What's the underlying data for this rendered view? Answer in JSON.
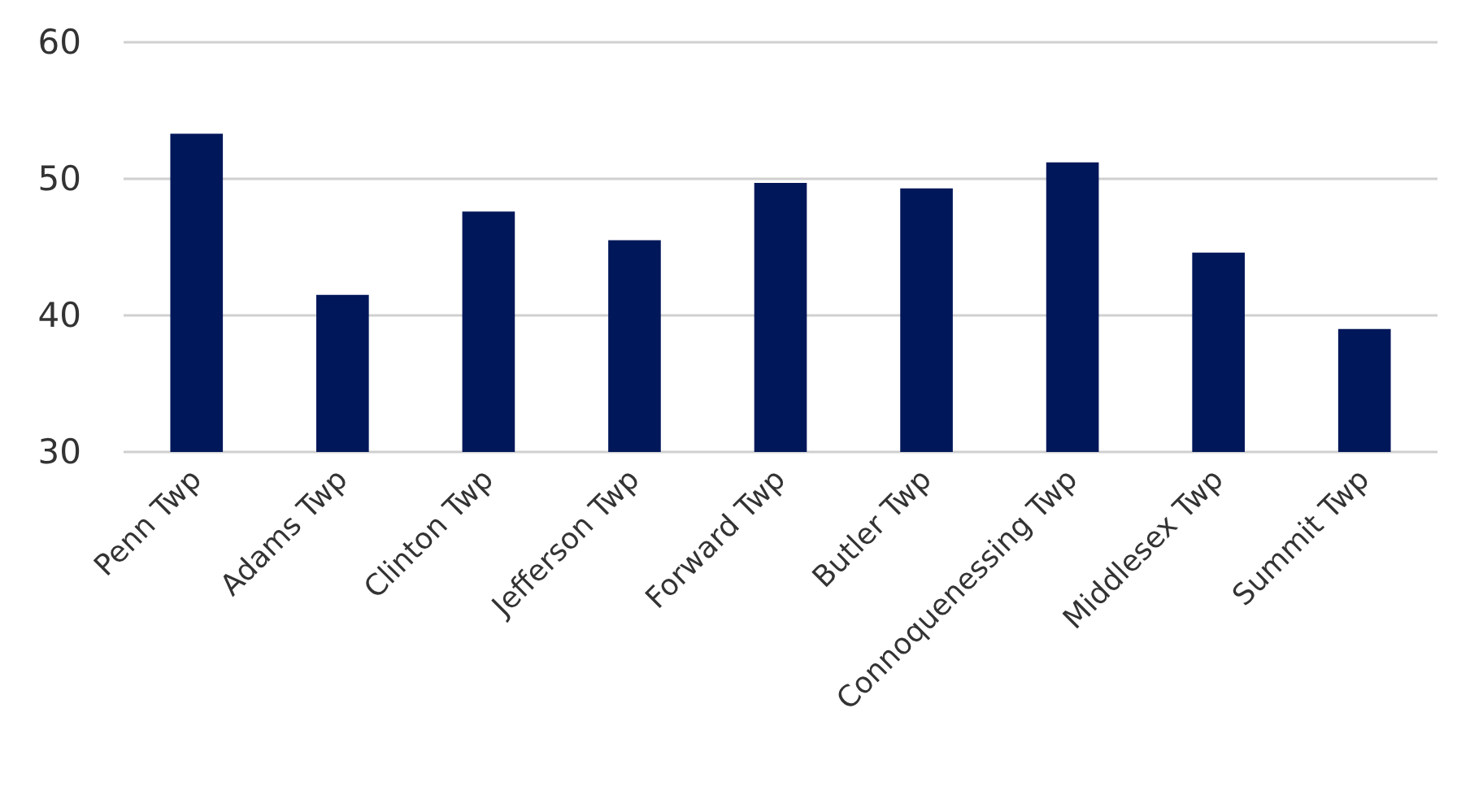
{
  "chart_data": {
    "type": "bar",
    "categories": [
      "Penn Twp",
      "Adams Twp",
      "Clinton Twp",
      "Jefferson Twp",
      "Forward Twp",
      "Butler Twp",
      "Connoquenessing Twp",
      "Middlesex Twp",
      "Summit Twp"
    ],
    "values": [
      53.3,
      41.5,
      47.6,
      45.5,
      49.7,
      49.3,
      51.2,
      44.6,
      39.0
    ],
    "color": "#00175a",
    "ylim": [
      30,
      60
    ],
    "yticks": [
      30,
      40,
      50,
      60
    ],
    "grid": "y"
  }
}
